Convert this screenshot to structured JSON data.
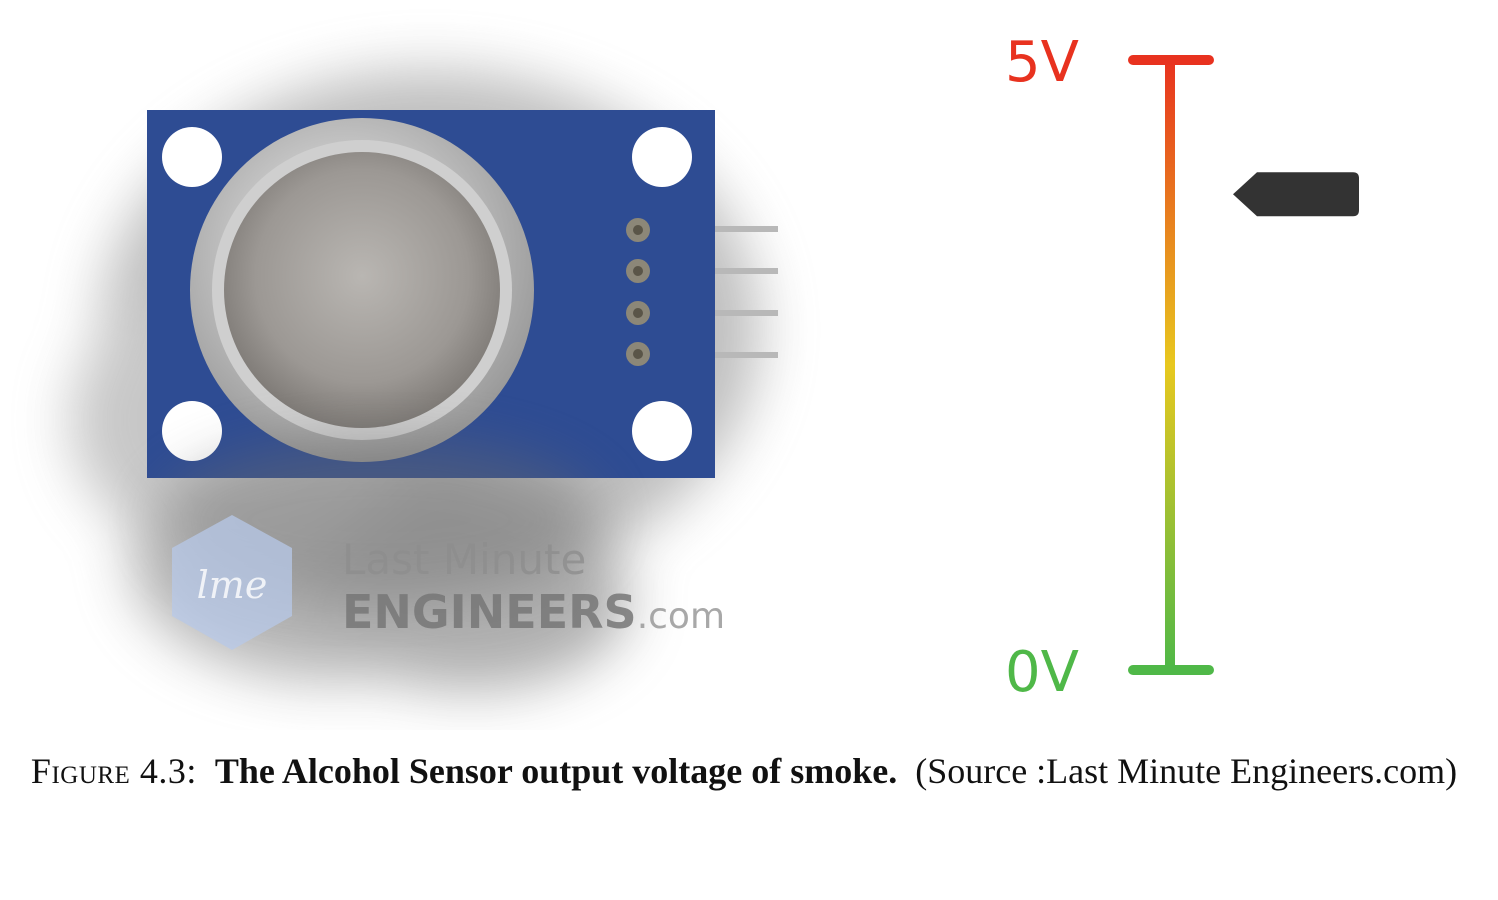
{
  "figure": {
    "watermark": {
      "line1": "Last Minute",
      "line2_a": "ENGINEERS",
      "line2_b": ".com",
      "logo": "lme"
    },
    "meter": {
      "top_label": "5V",
      "bottom_label": "0V",
      "top_color": "#e8321f",
      "mid_color": "#e8c81f",
      "bottom_color": "#4fb848",
      "pointer_level": 0.78
    },
    "sensor": {
      "board_color": "#22408a",
      "pin_count": 4
    }
  },
  "caption": {
    "label": "Figure 4.3:",
    "title": "The Alcohol Sensor output voltage of smoke.",
    "source": "(Source :Last Minute Engineers.com)"
  }
}
